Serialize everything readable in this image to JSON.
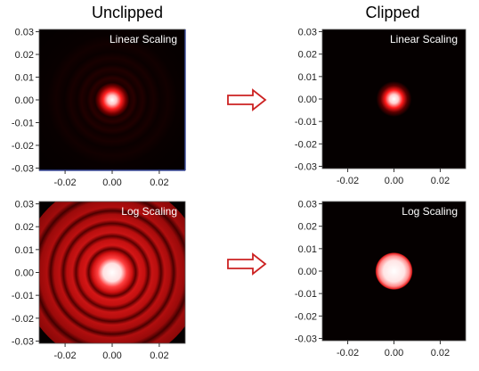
{
  "titles": {
    "left": "Unclipped",
    "right": "Clipped"
  },
  "colors": {
    "arrow": "#cc2222",
    "plot_background": "#050000",
    "spot_core": "#ffffff",
    "spot_red": "#ff2020",
    "axis_blue": "#3a4a9a"
  },
  "icons": {
    "arrow": "right-arrow-icon"
  },
  "chart_data": [
    {
      "type": "heatmap",
      "label": "Linear Scaling",
      "column": "Unclipped",
      "scaling": "linear",
      "clipped": false,
      "xlim": [
        -0.031,
        0.031
      ],
      "ylim": [
        -0.031,
        0.031
      ],
      "yticks": [
        0.03,
        0.02,
        0.01,
        0.0,
        -0.01,
        -0.02,
        -0.03
      ],
      "ytick_labels": [
        "0.03",
        "0.02",
        "0.01",
        "0.00",
        "-0.01",
        "-0.02",
        "-0.03"
      ],
      "xticks": [
        -0.02,
        0.0,
        0.02
      ],
      "xtick_labels": [
        "-0.02",
        "0.00",
        "0.02"
      ]
    },
    {
      "type": "heatmap",
      "label": "Linear Scaling",
      "column": "Clipped",
      "scaling": "linear",
      "clipped": true,
      "xlim": [
        -0.031,
        0.031
      ],
      "ylim": [
        -0.031,
        0.031
      ],
      "yticks": [
        0.03,
        0.02,
        0.01,
        0.0,
        -0.01,
        -0.02,
        -0.03
      ],
      "ytick_labels": [
        "0.03",
        "0.02",
        "0.01",
        "0.00",
        "-0.01",
        "-0.02",
        "-0.03"
      ],
      "xticks": [
        -0.02,
        0.0,
        0.02
      ],
      "xtick_labels": [
        "-0.02",
        "0.00",
        "0.02"
      ]
    },
    {
      "type": "heatmap",
      "label": "Log Scaling",
      "column": "Unclipped",
      "scaling": "log",
      "clipped": false,
      "xlim": [
        -0.031,
        0.031
      ],
      "ylim": [
        -0.031,
        0.031
      ],
      "yticks": [
        0.03,
        0.02,
        0.01,
        0.0,
        -0.01,
        -0.02,
        -0.03
      ],
      "ytick_labels": [
        "0.03",
        "0.02",
        "0.01",
        "0.00",
        "-0.01",
        "-0.02",
        "-0.03"
      ],
      "xticks": [
        -0.02,
        0.0,
        0.02
      ],
      "xtick_labels": [
        "-0.02",
        "0.00",
        "0.02"
      ]
    },
    {
      "type": "heatmap",
      "label": "Log Scaling",
      "column": "Clipped",
      "scaling": "log",
      "clipped": true,
      "xlim": [
        -0.031,
        0.031
      ],
      "ylim": [
        -0.031,
        0.031
      ],
      "yticks": [
        0.03,
        0.02,
        0.01,
        0.0,
        -0.01,
        -0.02,
        -0.03
      ],
      "ytick_labels": [
        "0.03",
        "0.02",
        "0.01",
        "0.00",
        "-0.01",
        "-0.02",
        "-0.03"
      ],
      "xticks": [
        -0.02,
        0.0,
        0.02
      ],
      "xtick_labels": [
        "-0.02",
        "0.00",
        "0.02"
      ]
    }
  ]
}
